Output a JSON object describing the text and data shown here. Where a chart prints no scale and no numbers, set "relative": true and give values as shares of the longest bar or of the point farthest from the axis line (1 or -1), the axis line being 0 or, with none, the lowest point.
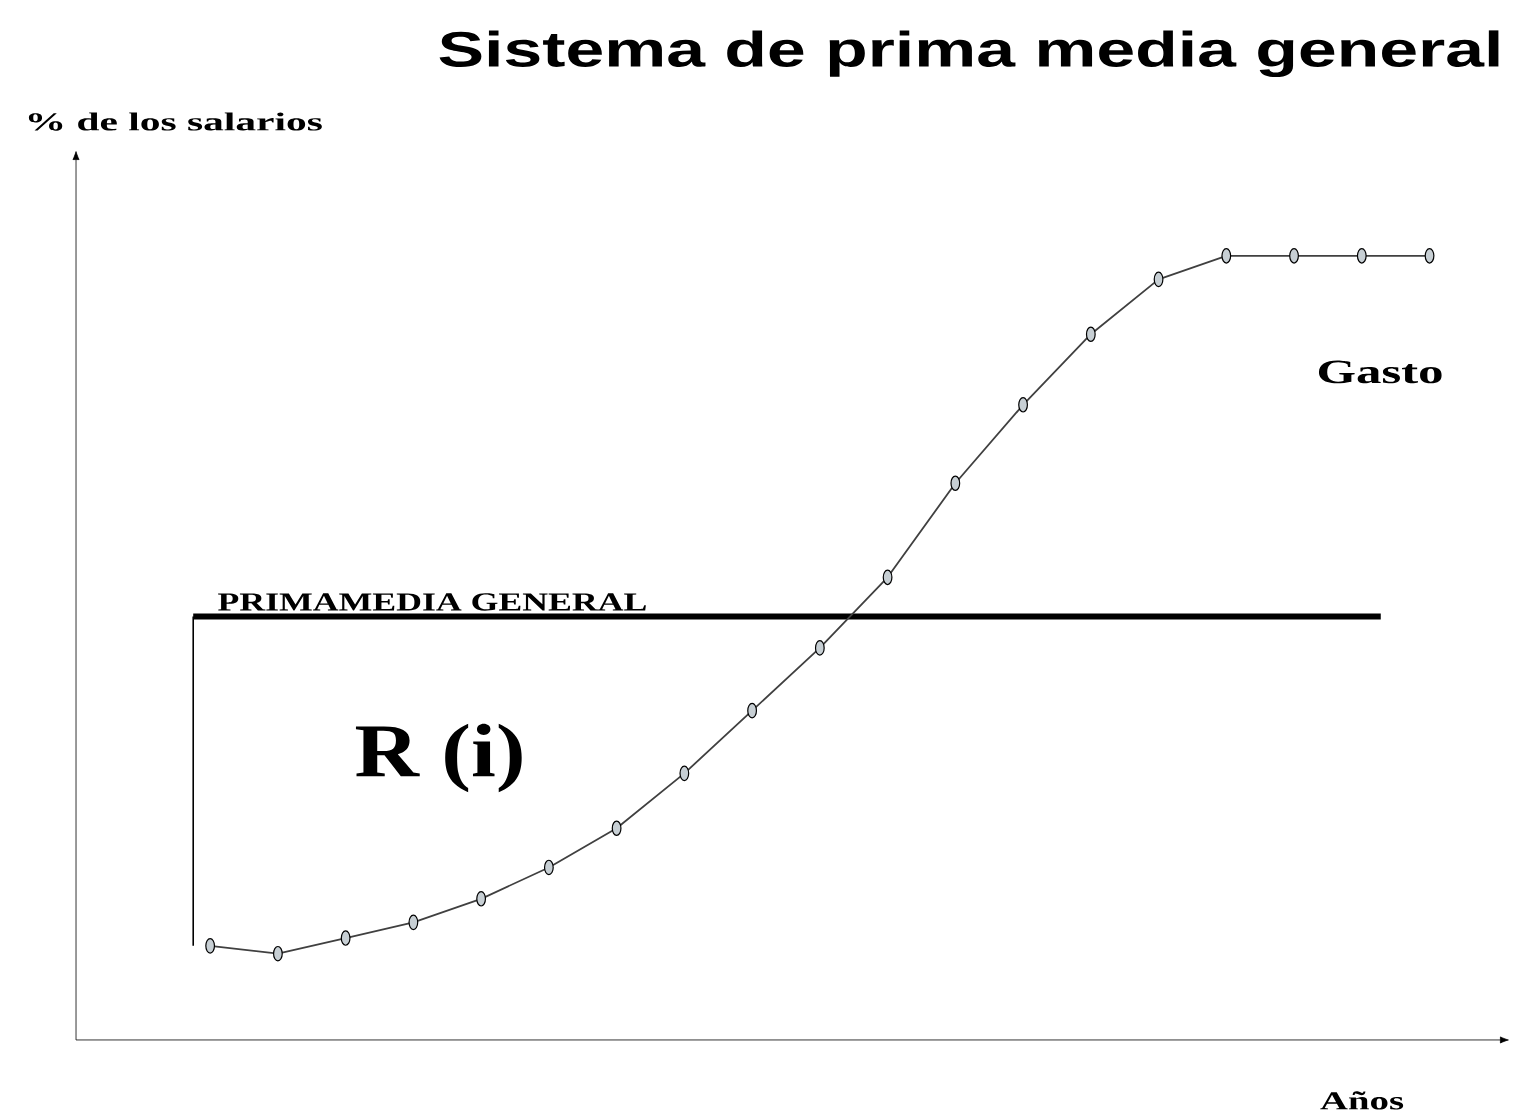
{
  "chart_data": {
    "type": "line",
    "title": "Sistema de prima media general",
    "xlabel": "Años",
    "ylabel": "% de los salarios",
    "relative": true,
    "marker": "circle",
    "categories": [
      null,
      null,
      null,
      null,
      null,
      null,
      null,
      null,
      null,
      null,
      null,
      null,
      null,
      null,
      null,
      null,
      null,
      null,
      null
    ],
    "series": [
      {
        "color": "#404040",
        "values": [
          0.12,
          0.11,
          0.13,
          0.15,
          0.18,
          0.22,
          0.27,
          0.34,
          0.42,
          0.5,
          0.59,
          0.71,
          0.81,
          0.9,
          0.97,
          1.0,
          1.0,
          1.0,
          1.0
        ]
      }
    ],
    "ref_lines": [
      {
        "axis": "y",
        "value": 0.54,
        "label": "PRIMAMEDIA GENERAL",
        "color": "#000000"
      }
    ],
    "annotations": [
      "R (i)",
      "Gasto"
    ]
  }
}
